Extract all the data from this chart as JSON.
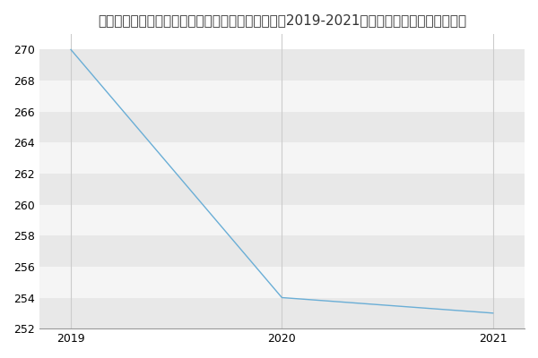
{
  "title": "桂林电子科技大学信息与通信学院电子科学与技术（2019-2021历年复试）研究生录取分数线",
  "x": [
    2019,
    2020,
    2021
  ],
  "y": [
    270,
    254,
    253
  ],
  "xlim": [
    2018.85,
    2021.15
  ],
  "ylim": [
    252,
    271
  ],
  "yticks": [
    252,
    254,
    256,
    258,
    260,
    262,
    264,
    266,
    268,
    270
  ],
  "xticks": [
    2019,
    2020,
    2021
  ],
  "line_color": "#6aaed6",
  "bg_color": "#ffffff",
  "plot_bg_color": "#ffffff",
  "band_color_dark": "#e8e8e8",
  "band_color_light": "#f5f5f5",
  "grid_color": "#ffffff",
  "title_fontsize": 11,
  "tick_fontsize": 9
}
